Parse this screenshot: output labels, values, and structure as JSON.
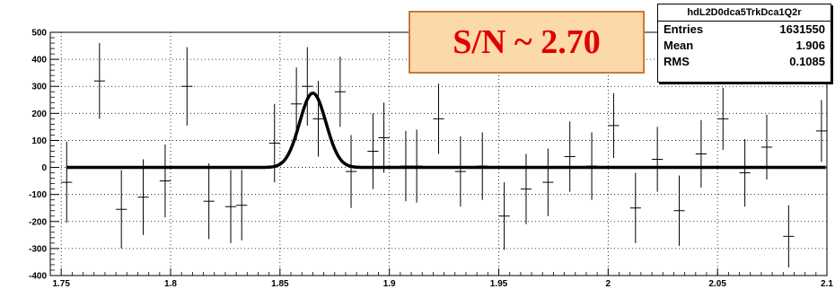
{
  "annotation": "S/N ~ 2.70",
  "stats_box": {
    "title": "hdL2D0dca5TrkDca1Q2r",
    "rows": [
      {
        "label": "Entries",
        "value": "1631550"
      },
      {
        "label": "Mean",
        "value": "1.906"
      },
      {
        "label": "RMS",
        "value": "0.1085"
      }
    ]
  },
  "chart_data": {
    "type": "scatter",
    "title": "",
    "xlabel": "",
    "ylabel": "",
    "xlim": [
      1.745,
      2.1
    ],
    "ylim": [
      -400,
      500
    ],
    "grid": true,
    "x_ticks": [
      "1.75",
      "1.8",
      "1.85",
      "1.9",
      "1.95",
      "2",
      "2.05",
      "2.1"
    ],
    "y_ticks": [
      "-400",
      "-300",
      "-200",
      "-100",
      "0",
      "100",
      "200",
      "300",
      "400",
      "500"
    ],
    "points": [
      {
        "x": 1.7525,
        "y": -55,
        "err": 150
      },
      {
        "x": 1.7675,
        "y": 320,
        "err": 140
      },
      {
        "x": 1.7775,
        "y": -155,
        "err": 145
      },
      {
        "x": 1.7875,
        "y": -110,
        "err": 140
      },
      {
        "x": 1.7975,
        "y": -50,
        "err": 135
      },
      {
        "x": 1.8075,
        "y": 300,
        "err": 145
      },
      {
        "x": 1.8175,
        "y": -125,
        "err": 140
      },
      {
        "x": 1.8275,
        "y": -145,
        "err": 135
      },
      {
        "x": 1.8325,
        "y": -140,
        "err": 130
      },
      {
        "x": 1.8475,
        "y": 90,
        "err": 145
      },
      {
        "x": 1.8575,
        "y": 235,
        "err": 135
      },
      {
        "x": 1.8625,
        "y": 300,
        "err": 145
      },
      {
        "x": 1.8675,
        "y": 180,
        "err": 140
      },
      {
        "x": 1.8775,
        "y": 280,
        "err": 130
      },
      {
        "x": 1.8825,
        "y": -15,
        "err": 135
      },
      {
        "x": 1.8925,
        "y": 60,
        "err": 140
      },
      {
        "x": 1.8975,
        "y": 110,
        "err": 130
      },
      {
        "x": 1.9075,
        "y": 5,
        "err": 130
      },
      {
        "x": 1.9125,
        "y": 5,
        "err": 135
      },
      {
        "x": 1.9225,
        "y": 180,
        "err": 130
      },
      {
        "x": 1.9325,
        "y": -15,
        "err": 130
      },
      {
        "x": 1.9425,
        "y": 5,
        "err": 125
      },
      {
        "x": 1.9525,
        "y": -180,
        "err": 125
      },
      {
        "x": 1.9625,
        "y": -80,
        "err": 130
      },
      {
        "x": 1.9725,
        "y": -55,
        "err": 125
      },
      {
        "x": 1.9825,
        "y": 40,
        "err": 130
      },
      {
        "x": 1.9925,
        "y": 5,
        "err": 125
      },
      {
        "x": 2.0025,
        "y": 155,
        "err": 120
      },
      {
        "x": 2.0125,
        "y": -150,
        "err": 130
      },
      {
        "x": 2.0225,
        "y": 30,
        "err": 120
      },
      {
        "x": 2.0325,
        "y": -160,
        "err": 130
      },
      {
        "x": 2.0425,
        "y": 50,
        "err": 125
      },
      {
        "x": 2.0525,
        "y": 180,
        "err": 115
      },
      {
        "x": 2.0625,
        "y": -20,
        "err": 125
      },
      {
        "x": 2.0725,
        "y": 75,
        "err": 120
      },
      {
        "x": 2.0825,
        "y": -255,
        "err": 115
      },
      {
        "x": 2.0975,
        "y": 135,
        "err": 115
      }
    ],
    "fit": {
      "type": "gaussian",
      "mean": 1.865,
      "amplitude": 275,
      "sigma": 0.006,
      "baseline": 0
    }
  }
}
